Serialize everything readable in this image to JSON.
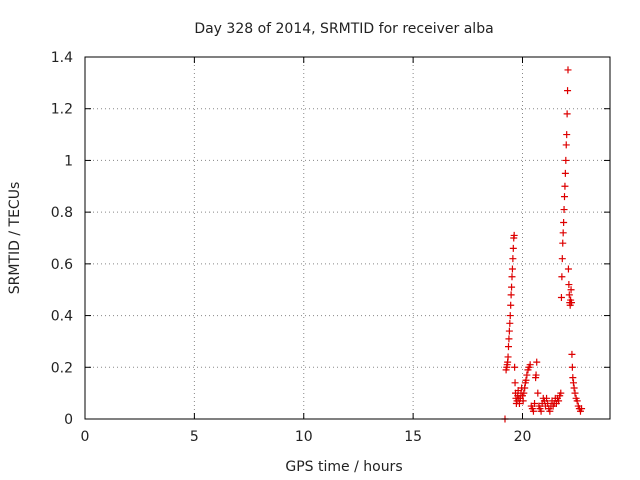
{
  "chart_data": {
    "type": "scatter",
    "title": "Day 328 of 2014, SRMTID for receiver alba",
    "xlabel": "GPS time / hours",
    "ylabel": "SRMTID / TECUs",
    "xlim": [
      0,
      24
    ],
    "ylim": [
      0,
      1.4
    ],
    "xticks": [
      0,
      5,
      10,
      15,
      20
    ],
    "xtick_labels": [
      "0",
      "5",
      "10",
      "15",
      "20"
    ],
    "yticks": [
      0,
      0.2,
      0.4,
      0.6,
      0.8,
      1,
      1.2,
      1.4
    ],
    "ytick_labels": [
      "0",
      "0.2",
      "0.4",
      "0.6",
      "0.8",
      "1",
      "1.2",
      "1.4"
    ],
    "grid": true,
    "colors": {
      "series": "#dd0000",
      "axis": "#000000",
      "grid": "#888888"
    },
    "series": [
      {
        "name": "SRMTID",
        "marker": "plus",
        "points": [
          [
            19.2,
            0.0
          ],
          [
            19.25,
            0.19
          ],
          [
            19.28,
            0.2
          ],
          [
            19.3,
            0.21
          ],
          [
            19.32,
            0.22
          ],
          [
            19.34,
            0.24
          ],
          [
            19.36,
            0.28
          ],
          [
            19.38,
            0.31
          ],
          [
            19.4,
            0.34
          ],
          [
            19.42,
            0.37
          ],
          [
            19.44,
            0.4
          ],
          [
            19.46,
            0.44
          ],
          [
            19.48,
            0.48
          ],
          [
            19.5,
            0.51
          ],
          [
            19.52,
            0.55
          ],
          [
            19.54,
            0.58
          ],
          [
            19.56,
            0.62
          ],
          [
            19.58,
            0.66
          ],
          [
            19.6,
            0.7
          ],
          [
            19.62,
            0.71
          ],
          [
            19.64,
            0.2
          ],
          [
            19.66,
            0.14
          ],
          [
            19.68,
            0.1
          ],
          [
            19.7,
            0.08
          ],
          [
            19.72,
            0.06
          ],
          [
            19.75,
            0.07
          ],
          [
            19.78,
            0.09
          ],
          [
            19.8,
            0.11
          ],
          [
            19.83,
            0.08
          ],
          [
            19.86,
            0.06
          ],
          [
            19.9,
            0.08
          ],
          [
            19.93,
            0.1
          ],
          [
            19.96,
            0.12
          ],
          [
            20.0,
            0.09
          ],
          [
            20.03,
            0.07
          ],
          [
            20.06,
            0.1
          ],
          [
            20.1,
            0.12
          ],
          [
            20.13,
            0.14
          ],
          [
            20.16,
            0.15
          ],
          [
            20.2,
            0.17
          ],
          [
            20.25,
            0.19
          ],
          [
            20.3,
            0.2
          ],
          [
            20.35,
            0.21
          ],
          [
            20.4,
            0.05
          ],
          [
            20.45,
            0.04
          ],
          [
            20.5,
            0.03
          ],
          [
            20.55,
            0.06
          ],
          [
            20.6,
            0.16
          ],
          [
            20.62,
            0.17
          ],
          [
            20.65,
            0.22
          ],
          [
            20.7,
            0.1
          ],
          [
            20.75,
            0.05
          ],
          [
            20.8,
            0.04
          ],
          [
            20.85,
            0.03
          ],
          [
            20.9,
            0.06
          ],
          [
            20.95,
            0.08
          ],
          [
            21.0,
            0.07
          ],
          [
            21.05,
            0.05
          ],
          [
            21.1,
            0.08
          ],
          [
            21.15,
            0.06
          ],
          [
            21.2,
            0.04
          ],
          [
            21.25,
            0.03
          ],
          [
            21.3,
            0.05
          ],
          [
            21.35,
            0.07
          ],
          [
            21.4,
            0.05
          ],
          [
            21.45,
            0.06
          ],
          [
            21.5,
            0.08
          ],
          [
            21.55,
            0.06
          ],
          [
            21.6,
            0.08
          ],
          [
            21.65,
            0.07
          ],
          [
            21.7,
            0.09
          ],
          [
            21.75,
            0.1
          ],
          [
            21.78,
            0.47
          ],
          [
            21.8,
            0.55
          ],
          [
            21.82,
            0.62
          ],
          [
            21.84,
            0.68
          ],
          [
            21.86,
            0.72
          ],
          [
            21.88,
            0.76
          ],
          [
            21.9,
            0.81
          ],
          [
            21.92,
            0.86
          ],
          [
            21.94,
            0.9
          ],
          [
            21.96,
            0.95
          ],
          [
            21.98,
            1.0
          ],
          [
            22.0,
            1.06
          ],
          [
            22.02,
            1.1
          ],
          [
            22.04,
            1.18
          ],
          [
            22.06,
            1.27
          ],
          [
            22.08,
            1.35
          ],
          [
            22.1,
            0.58
          ],
          [
            22.12,
            0.52
          ],
          [
            22.14,
            0.48
          ],
          [
            22.16,
            0.45
          ],
          [
            22.18,
            0.44
          ],
          [
            22.2,
            0.46
          ],
          [
            22.22,
            0.5
          ],
          [
            22.24,
            0.45
          ],
          [
            22.26,
            0.25
          ],
          [
            22.28,
            0.2
          ],
          [
            22.3,
            0.16
          ],
          [
            22.33,
            0.14
          ],
          [
            22.36,
            0.12
          ],
          [
            22.4,
            0.1
          ],
          [
            22.45,
            0.08
          ],
          [
            22.5,
            0.07
          ],
          [
            22.55,
            0.05
          ],
          [
            22.6,
            0.04
          ],
          [
            22.65,
            0.03
          ],
          [
            22.7,
            0.04
          ]
        ]
      }
    ]
  }
}
